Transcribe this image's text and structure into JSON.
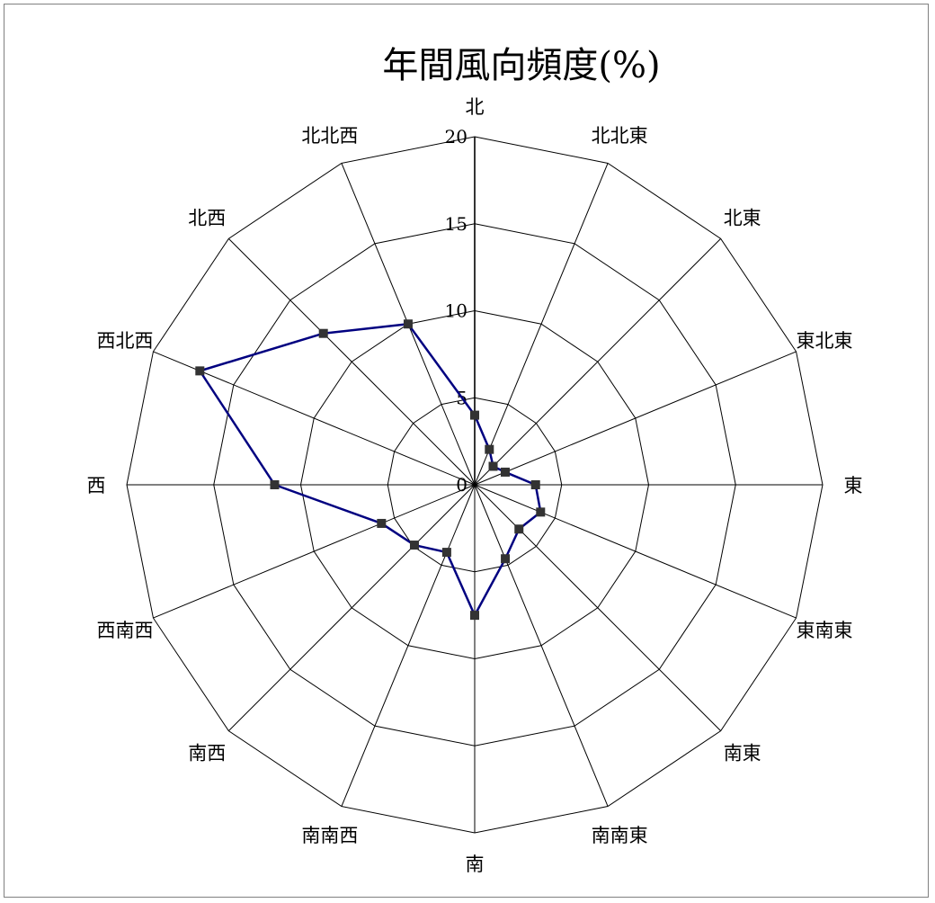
{
  "chart_data": {
    "type": "radar",
    "title": "年間風向頻度(%)",
    "categories": [
      "北",
      "北北東",
      "北東",
      "東北東",
      "東",
      "東南東",
      "南東",
      "南南東",
      "南",
      "南南西",
      "南西",
      "西南西",
      "西",
      "西北西",
      "北西",
      "北北西"
    ],
    "values": [
      4,
      2.2,
      1.5,
      1.9,
      3.5,
      4.1,
      3.6,
      4.6,
      7.5,
      4.2,
      4.9,
      5.8,
      11.5,
      17.1,
      12.3,
      10.0
    ],
    "r_min": 0,
    "r_max": 20,
    "r_ticks": [
      "0",
      "5",
      "10",
      "15",
      "20"
    ],
    "grid": true,
    "legend": "none",
    "colors": {
      "series": "#000080",
      "marker": "#333333",
      "grid": "#000000"
    }
  }
}
